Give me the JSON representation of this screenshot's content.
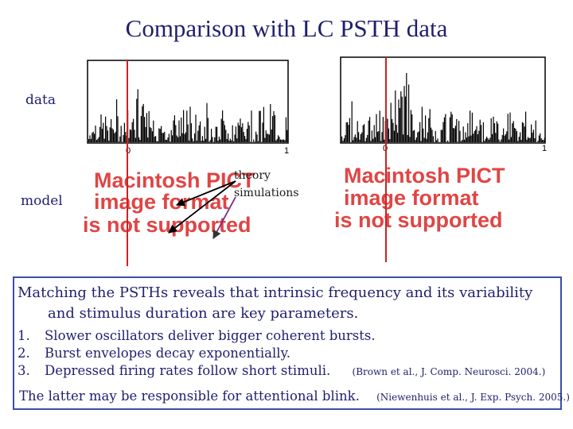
{
  "slide": {
    "title": "Comparison with LC PSTH data",
    "row_label_data": "data",
    "row_label_model": "model",
    "annotation_line1": "theory",
    "annotation_line2": "simulations",
    "placeholder_text": [
      "Macintosh PICT",
      "image format",
      "is not supported"
    ],
    "colors": {
      "title": "#1f1f6e",
      "marker_line": "#d02020",
      "box_border": "#3b4ea8",
      "placeholder_text": "#e04545"
    }
  },
  "charts": {
    "left": {
      "x_ticks": [
        "0",
        "1"
      ]
    },
    "right": {
      "x_ticks": [
        "0",
        "1"
      ]
    }
  },
  "textbox": {
    "lead_line1": "Matching the PSTHs reveals that intrinsic frequency and its variability",
    "lead_line2": "and stimulus duration are key parameters.",
    "items": [
      {
        "num": "1.",
        "text": "Slower oscillators deliver bigger coherent bursts.",
        "cite": ""
      },
      {
        "num": "2.",
        "text": "Burst envelopes decay exponentially.",
        "cite": ""
      },
      {
        "num": "3.",
        "text": "Depressed firing rates follow short stimuli.",
        "cite": "(Brown et al., J. Comp. Neurosci. 2004.)"
      }
    ],
    "closing_text": "The latter may be responsible for attentional blink.",
    "closing_cite": "(Niewenhuis et al., J. Exp. Psych. 2005.)"
  }
}
